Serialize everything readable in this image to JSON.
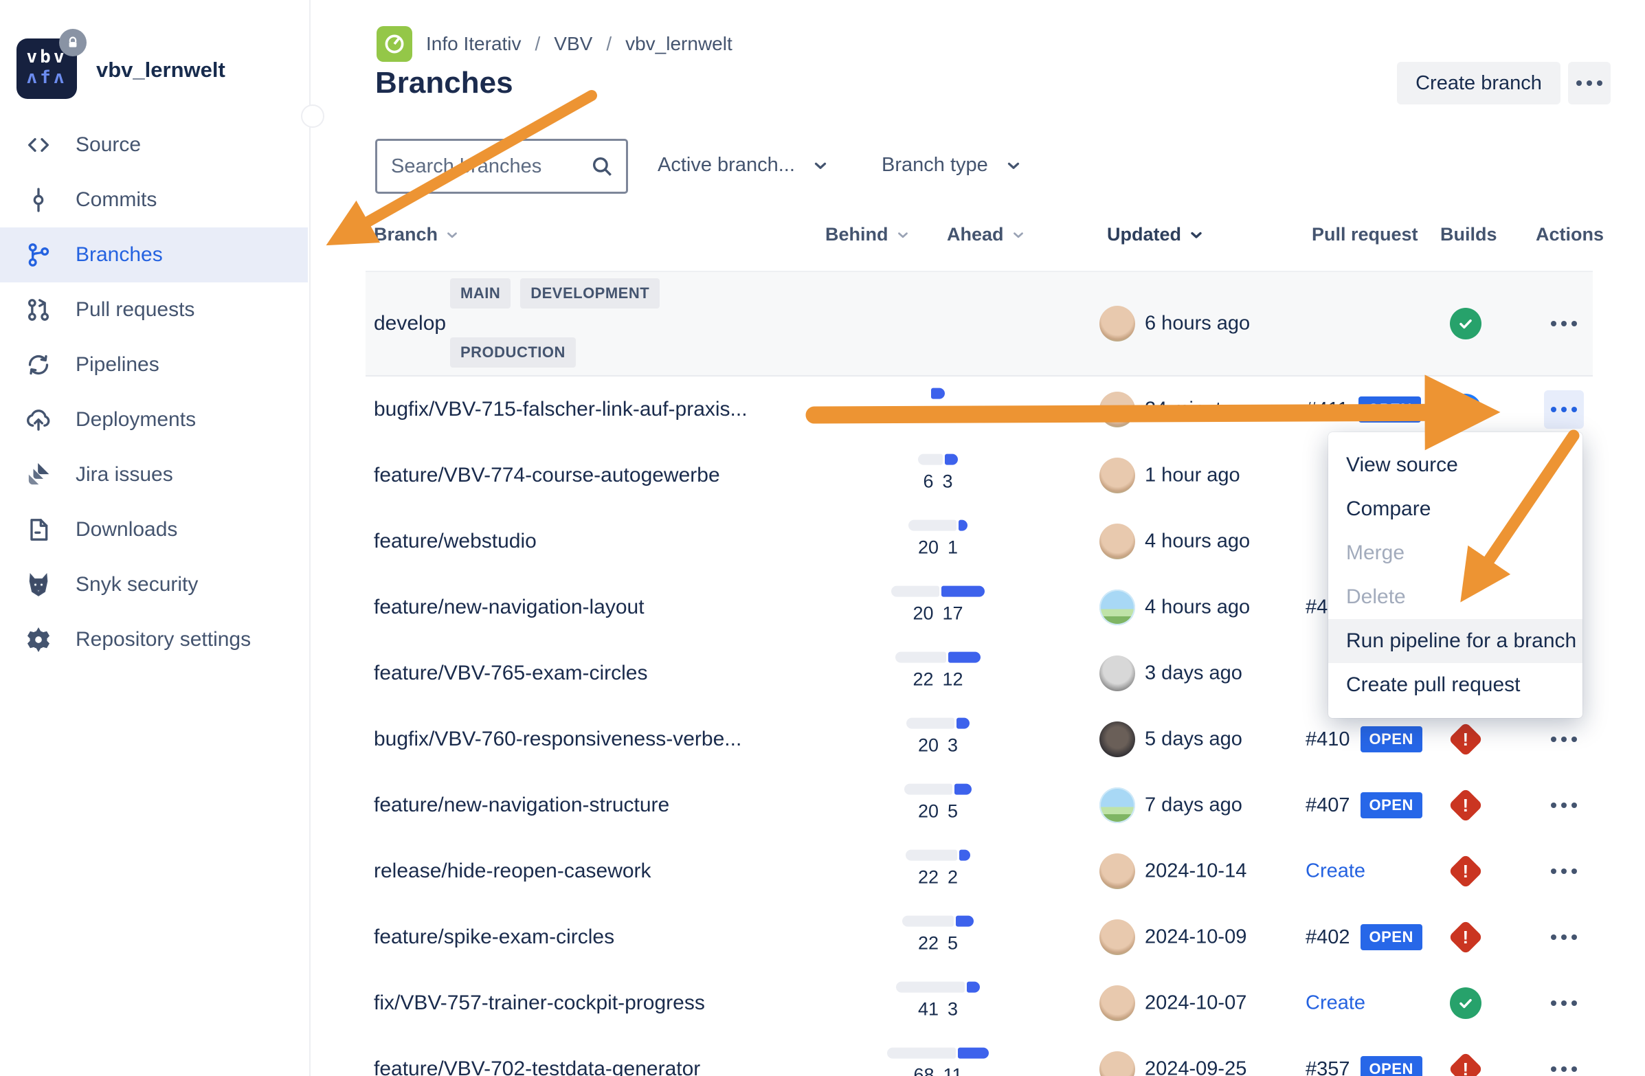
{
  "app": {
    "repo_name": "vbv_lernwelt"
  },
  "sidebar": {
    "items": [
      {
        "label": "Source",
        "icon": "source",
        "active": false
      },
      {
        "label": "Commits",
        "icon": "commits",
        "active": false
      },
      {
        "label": "Branches",
        "icon": "branches",
        "active": true
      },
      {
        "label": "Pull requests",
        "icon": "pull-requests",
        "active": false
      },
      {
        "label": "Pipelines",
        "icon": "pipelines",
        "active": false
      },
      {
        "label": "Deployments",
        "icon": "deployments",
        "active": false
      },
      {
        "label": "Jira issues",
        "icon": "jira",
        "active": false
      },
      {
        "label": "Downloads",
        "icon": "downloads",
        "active": false
      },
      {
        "label": "Snyk security",
        "icon": "snyk",
        "active": false
      },
      {
        "label": "Repository settings",
        "icon": "settings",
        "active": false
      }
    ]
  },
  "breadcrumb": {
    "items": [
      "Info Iterativ",
      "VBV",
      "vbv_lernwelt"
    ],
    "separator": "/"
  },
  "header": {
    "title": "Branches",
    "create_branch_label": "Create branch"
  },
  "filters": {
    "search_placeholder": "Search branches",
    "active_branches_label": "Active branch...",
    "branch_type_label": "Branch type"
  },
  "table": {
    "columns": [
      "Branch",
      "Behind",
      "Ahead",
      "Updated",
      "Pull request",
      "Builds",
      "Actions"
    ],
    "rows": [
      {
        "name": "develop",
        "badges": [
          "MAIN",
          "DEVELOPMENT",
          "PRODUCTION"
        ],
        "behind": null,
        "ahead": null,
        "updated": "6 hours ago",
        "avatar": "photo",
        "pull_request": null,
        "build": "success",
        "actions_highlighted": false
      },
      {
        "name": "bugfix/VBV-715-falscher-link-auf-praxis...",
        "badges": [],
        "behind": 0,
        "ahead": 3,
        "updated": "24 minutes ago",
        "avatar": "photo",
        "pull_request": {
          "text": "#411",
          "state": "OPEN",
          "link": false
        },
        "build": "in-progress",
        "actions_highlighted": true
      },
      {
        "name": "feature/VBV-774-course-autogewerbe",
        "badges": [],
        "behind": 6,
        "ahead": 3,
        "updated": "1 hour ago",
        "avatar": "photo",
        "pull_request": null,
        "build": null,
        "actions_highlighted": false
      },
      {
        "name": "feature/webstudio",
        "badges": [],
        "behind": 20,
        "ahead": 1,
        "updated": "4 hours ago",
        "avatar": "photo",
        "pull_request": null,
        "build": null,
        "actions_highlighted": false
      },
      {
        "name": "feature/new-navigation-layout",
        "badges": [],
        "behind": 20,
        "ahead": 17,
        "updated": "4 hours ago",
        "avatar": "pixel",
        "pull_request": {
          "text": "#4",
          "state": null,
          "link": false
        },
        "build": null,
        "actions_highlighted": false
      },
      {
        "name": "feature/VBV-765-exam-circles",
        "badges": [],
        "behind": 22,
        "ahead": 12,
        "updated": "3 days ago",
        "avatar": "bw",
        "pull_request": null,
        "build": null,
        "actions_highlighted": false
      },
      {
        "name": "bugfix/VBV-760-responsiveness-verbe...",
        "badges": [],
        "behind": 20,
        "ahead": 3,
        "updated": "5 days ago",
        "avatar": "dark",
        "pull_request": {
          "text": "#410",
          "state": "OPEN",
          "link": false
        },
        "build": "failed",
        "actions_highlighted": false
      },
      {
        "name": "feature/new-navigation-structure",
        "badges": [],
        "behind": 20,
        "ahead": 5,
        "updated": "7 days ago",
        "avatar": "pixel",
        "pull_request": {
          "text": "#407",
          "state": "OPEN",
          "link": false
        },
        "build": "failed",
        "actions_highlighted": false
      },
      {
        "name": "release/hide-reopen-casework",
        "badges": [],
        "behind": 22,
        "ahead": 2,
        "updated": "2024-10-14",
        "avatar": "photo",
        "pull_request": {
          "text": "Create",
          "state": null,
          "link": true
        },
        "build": "failed",
        "actions_highlighted": false
      },
      {
        "name": "feature/spike-exam-circles",
        "badges": [],
        "behind": 22,
        "ahead": 5,
        "updated": "2024-10-09",
        "avatar": "photo",
        "pull_request": {
          "text": "#402",
          "state": "OPEN",
          "link": false
        },
        "build": "failed",
        "actions_highlighted": false
      },
      {
        "name": "fix/VBV-757-trainer-cockpit-progress",
        "badges": [],
        "behind": 41,
        "ahead": 3,
        "updated": "2024-10-07",
        "avatar": "photo",
        "pull_request": {
          "text": "Create",
          "state": null,
          "link": true
        },
        "build": "success",
        "actions_highlighted": false
      },
      {
        "name": "feature/VBV-702-testdata-generator",
        "badges": [],
        "behind": 68,
        "ahead": 11,
        "updated": "2024-09-25",
        "avatar": "photo",
        "pull_request": {
          "text": "#357",
          "state": "OPEN",
          "link": false
        },
        "build": "failed",
        "actions_highlighted": false
      }
    ]
  },
  "context_menu": {
    "items": [
      {
        "label": "View source",
        "disabled": false,
        "highlighted": false
      },
      {
        "label": "Compare",
        "disabled": false,
        "highlighted": false
      },
      {
        "label": "Merge",
        "disabled": true,
        "highlighted": false
      },
      {
        "label": "Delete",
        "disabled": true,
        "highlighted": false
      },
      {
        "label": "Run pipeline for a branch",
        "disabled": false,
        "highlighted": true
      },
      {
        "label": "Create pull request",
        "disabled": false,
        "highlighted": false
      }
    ]
  },
  "annotations": {
    "arrow_color": "#ED9433",
    "arrows": [
      {
        "target": "sidebar-branches-item"
      },
      {
        "target": "row-actions-button"
      },
      {
        "target": "menu-run-pipeline-item"
      }
    ]
  },
  "colors": {
    "text_primary": "#172B4D",
    "text_muted": "#44546F",
    "accent_blue": "#2462E0",
    "open_badge": "#2767E8",
    "success_green": "#27A26B",
    "failed_red": "#CA3521",
    "in_progress_blue": "#1D7AFC",
    "row_highlight": "#F7F8F9",
    "nav_active_bg": "#E9EDF8"
  }
}
